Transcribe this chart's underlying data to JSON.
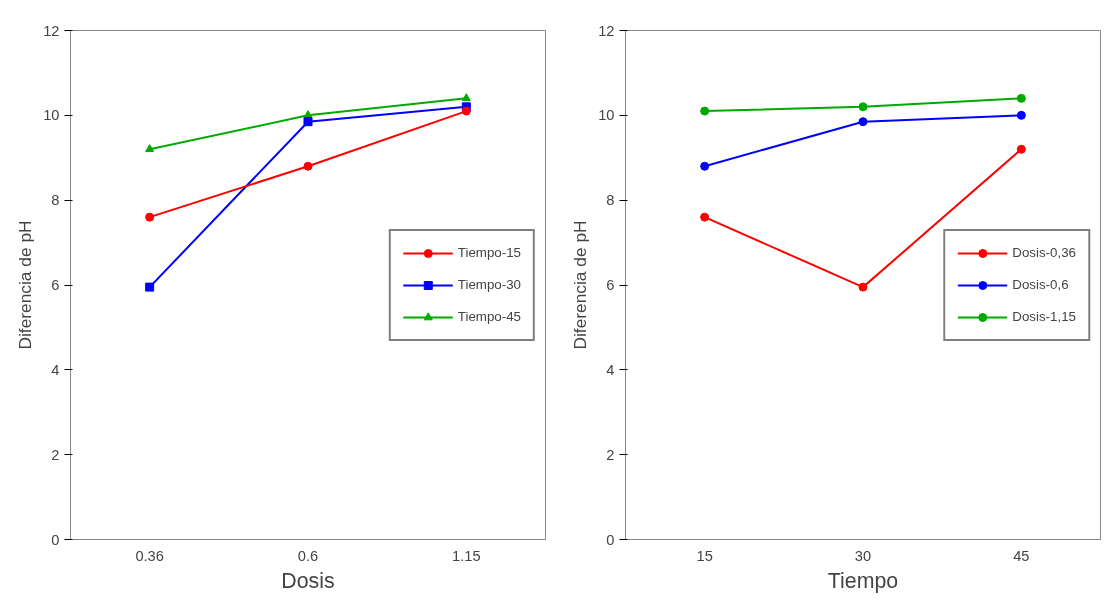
{
  "chart_data": [
    {
      "type": "line",
      "xlabel": "Dosis",
      "ylabel": "Diferencia de pH",
      "categories": [
        "0.36",
        "0.6",
        "1.15"
      ],
      "ylim": [
        0,
        12
      ],
      "yticks": [
        0,
        2,
        4,
        6,
        8,
        10,
        12
      ],
      "grid": false,
      "legend": "right",
      "series": [
        {
          "name": "Tiempo-15",
          "color": "#ff0000",
          "marker": "circle",
          "values": [
            7.6,
            8.8,
            10.1
          ]
        },
        {
          "name": "Tiempo-30",
          "color": "#0000ff",
          "marker": "square",
          "values": [
            5.95,
            9.85,
            10.2
          ]
        },
        {
          "name": "Tiempo-45",
          "color": "#00aa00",
          "marker": "triangle",
          "values": [
            9.2,
            10.0,
            10.4
          ]
        }
      ]
    },
    {
      "type": "line",
      "xlabel": "Tiempo",
      "ylabel": "Diferencia de pH",
      "categories": [
        "15",
        "30",
        "45"
      ],
      "ylim": [
        0,
        12
      ],
      "yticks": [
        0,
        2,
        4,
        6,
        8,
        10,
        12
      ],
      "grid": false,
      "legend": "right",
      "series": [
        {
          "name": "Dosis-0,36",
          "color": "#ff0000",
          "marker": "circle",
          "values": [
            7.6,
            5.95,
            9.2
          ]
        },
        {
          "name": "Dosis-0,6",
          "color": "#0000ff",
          "marker": "circle",
          "values": [
            8.8,
            9.85,
            10.0
          ]
        },
        {
          "name": "Dosis-1,15",
          "color": "#00aa00",
          "marker": "circle",
          "values": [
            10.1,
            10.2,
            10.4
          ]
        }
      ]
    }
  ]
}
